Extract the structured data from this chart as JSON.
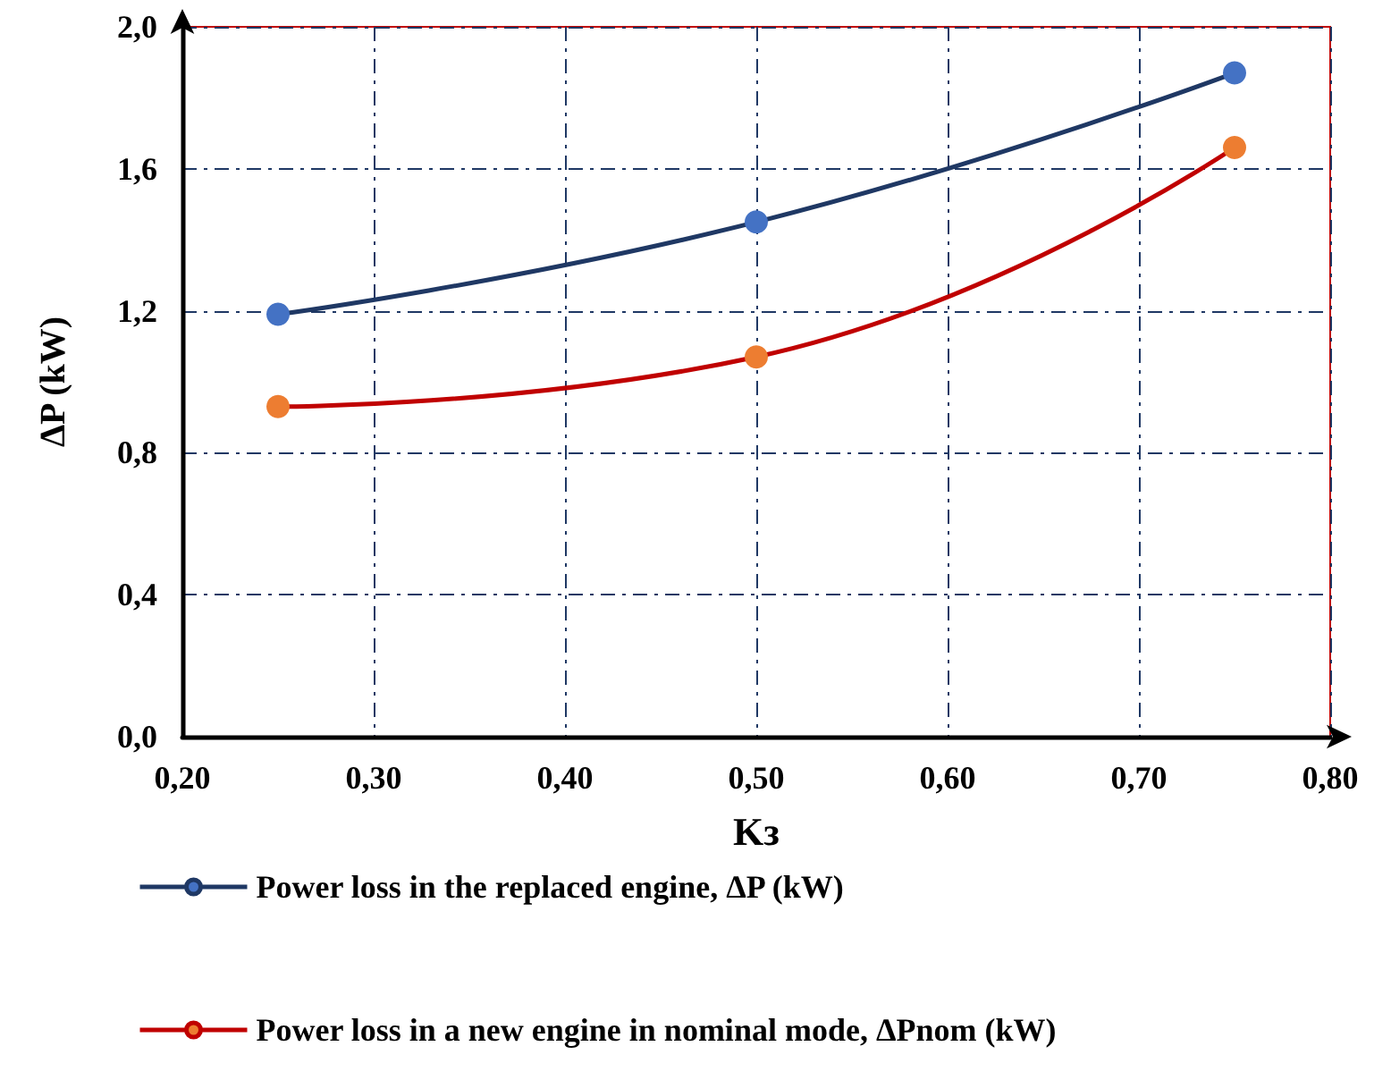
{
  "chart_data": {
    "type": "line",
    "xlabel": "Kз",
    "ylabel": "ΔP (kW)",
    "x": [
      0.25,
      0.5,
      0.75
    ],
    "series": [
      {
        "name": "Power loss in the replaced engine, ΔP (kW)",
        "color": "#1f3864",
        "colors": [
          "#4472c4",
          "#4472c4",
          "#4472c4"
        ],
        "values": [
          1.19,
          1.45,
          1.87
        ]
      },
      {
        "name": "Power loss in a new engine in nominal mode, ΔPnom (kW)",
        "color": "#c00000",
        "colors": [
          "#ed7d31",
          "#ed7d31",
          "#ed7d31"
        ],
        "values": [
          0.93,
          1.07,
          1.66
        ]
      }
    ],
    "xlim": [
      0.2,
      0.8
    ],
    "xticks": [
      {
        "value": 0.2,
        "label": "0,20"
      },
      {
        "value": 0.3,
        "label": "0,30"
      },
      {
        "value": 0.4,
        "label": "0,40"
      },
      {
        "value": 0.5,
        "label": "0,50"
      },
      {
        "value": 0.6,
        "label": "0,60"
      },
      {
        "value": 0.7,
        "label": "0,70"
      },
      {
        "value": 0.8,
        "label": "0,80"
      }
    ],
    "ylim": [
      0,
      2
    ],
    "yticks": [
      {
        "value": 0,
        "label": "0,0"
      },
      {
        "value": 0.4,
        "label": "0,4"
      },
      {
        "value": 0.8,
        "label": "0,8"
      },
      {
        "value": 1.2,
        "label": "1,2"
      },
      {
        "value": 1.6,
        "label": "1,6"
      },
      {
        "value": 2,
        "label": "2,0"
      }
    ],
    "grid": true,
    "legend": "bottom",
    "marker": "circle",
    "line_style": "solid"
  }
}
